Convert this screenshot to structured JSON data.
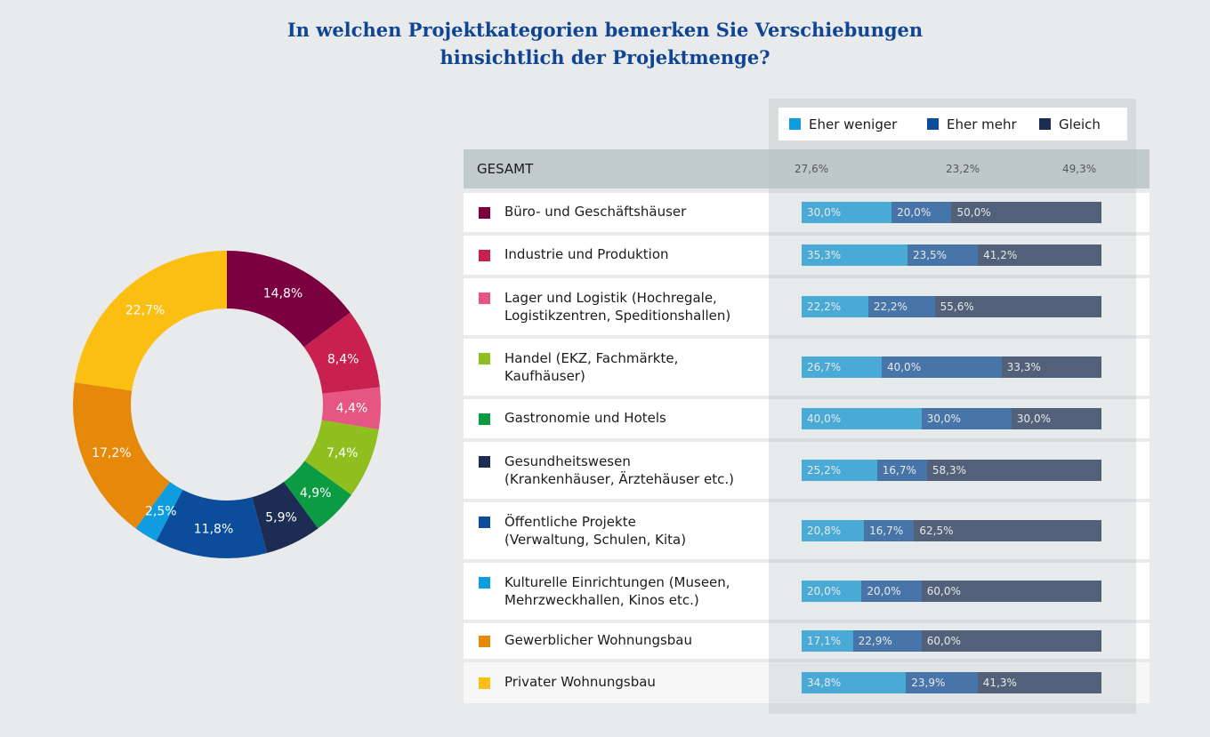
{
  "title": {
    "line1": "In welchen Projektkategorien bemerken Sie Verschiebungen",
    "line2": "hinsichtlich der Projektmenge?"
  },
  "legend": [
    {
      "label": "Eher weniger",
      "color": "#0f9de0"
    },
    {
      "label": "Eher mehr",
      "color": "#0b4c9b"
    },
    {
      "label": "Gleich",
      "color": "#1c2c53"
    }
  ],
  "gesamt": {
    "label": "GESAMT",
    "values": [
      "27,6%",
      "23,2%",
      "49,3%"
    ]
  },
  "chart_data": [
    {
      "type": "pie",
      "subtype": "donut",
      "title": "",
      "start": "top, clockwise",
      "slices": [
        {
          "category": "Büro- und Geschäftshäuser",
          "value": 14.8,
          "label": "14,8%",
          "color": "#7a0040"
        },
        {
          "category": "Industrie und Produktion",
          "value": 8.4,
          "label": "8,4%",
          "color": "#c9214f"
        },
        {
          "category": "Lager und Logistik",
          "value": 4.4,
          "label": "4,4%",
          "color": "#e65683"
        },
        {
          "category": "Handel",
          "value": 7.4,
          "label": "7,4%",
          "color": "#8fbf1f"
        },
        {
          "category": "Gastronomie und Hotels",
          "value": 4.9,
          "label": "4,9%",
          "color": "#0b9c43"
        },
        {
          "category": "Gesundheitswesen",
          "value": 5.9,
          "label": "5,9%",
          "color": "#1c2c53"
        },
        {
          "category": "Öffentliche Projekte",
          "value": 11.8,
          "label": "11,8%",
          "color": "#0b4c9b"
        },
        {
          "category": "Kulturelle Einrichtungen",
          "value": 2.5,
          "label": "2,5%",
          "color": "#0f9de0"
        },
        {
          "category": "Gewerblicher Wohnungsbau",
          "value": 17.2,
          "label": "17,2%",
          "color": "#e6890a"
        },
        {
          "category": "Privater Wohnungsbau",
          "value": 22.7,
          "label": "22,7%",
          "color": "#fbbf14"
        }
      ]
    },
    {
      "type": "bar",
      "subtype": "stacked-horizontal-100",
      "series_names": [
        "Eher weniger",
        "Eher mehr",
        "Gleich"
      ],
      "series_colors": [
        "#0f9de0",
        "#0b4c9b",
        "#1c2c53"
      ],
      "total": {
        "label": "GESAMT",
        "values": [
          27.6,
          23.2,
          49.3
        ]
      },
      "rows": [
        {
          "lines": [
            "Büro- und Geschäftshäuser"
          ],
          "color": "#7a0040",
          "values": [
            30.0,
            20.0,
            50.0
          ],
          "labels": [
            "30,0%",
            "20,0%",
            "50,0%"
          ]
        },
        {
          "lines": [
            "Industrie und Produktion"
          ],
          "color": "#c9214f",
          "values": [
            35.3,
            23.5,
            41.2
          ],
          "labels": [
            "35,3%",
            "23,5%",
            "41,2%"
          ]
        },
        {
          "lines": [
            "Lager und Logistik (Hochregale,",
            "Logistikzentren, Speditionshallen)"
          ],
          "color": "#e65683",
          "values": [
            22.2,
            22.2,
            55.6
          ],
          "labels": [
            "22,2%",
            "22,2%",
            "55,6%"
          ]
        },
        {
          "lines": [
            "Handel (EKZ, Fachmärkte,",
            "Kaufhäuser)"
          ],
          "color": "#8fbf1f",
          "values": [
            26.7,
            40.0,
            33.3
          ],
          "labels": [
            "26,7%",
            "40,0%",
            "33,3%"
          ]
        },
        {
          "lines": [
            "Gastronomie und Hotels"
          ],
          "color": "#0b9c43",
          "values": [
            40.0,
            30.0,
            30.0
          ],
          "labels": [
            "40,0%",
            "30,0%",
            "30,0%"
          ]
        },
        {
          "lines": [
            "Gesundheitswesen",
            "(Krankenhäuser, Ärztehäuser etc.)"
          ],
          "color": "#1c2c53",
          "values": [
            25.2,
            16.7,
            58.3
          ],
          "labels": [
            "25,2%",
            "16,7%",
            "58,3%"
          ]
        },
        {
          "lines": [
            "Öffentliche Projekte",
            "(Verwaltung, Schulen, Kita)"
          ],
          "color": "#0b4c9b",
          "values": [
            20.8,
            16.7,
            62.5
          ],
          "labels": [
            "20,8%",
            "16,7%",
            "62,5%"
          ]
        },
        {
          "lines": [
            "Kulturelle Einrichtungen (Museen,",
            "Mehrzweckhallen, Kinos etc.)"
          ],
          "color": "#0f9de0",
          "values": [
            20.0,
            20.0,
            60.0
          ],
          "labels": [
            "20,0%",
            "20,0%",
            "60,0%"
          ]
        },
        {
          "lines": [
            "Gewerblicher Wohnungsbau"
          ],
          "color": "#e6890a",
          "values": [
            17.1,
            22.9,
            60.0
          ],
          "labels": [
            "17,1%",
            "22,9%",
            "60,0%"
          ]
        },
        {
          "lines": [
            "Privater Wohnungsbau"
          ],
          "color": "#fbbf14",
          "values": [
            34.8,
            23.9,
            41.3
          ],
          "labels": [
            "34,8%",
            "23,9%",
            "41,3%"
          ]
        }
      ]
    }
  ]
}
